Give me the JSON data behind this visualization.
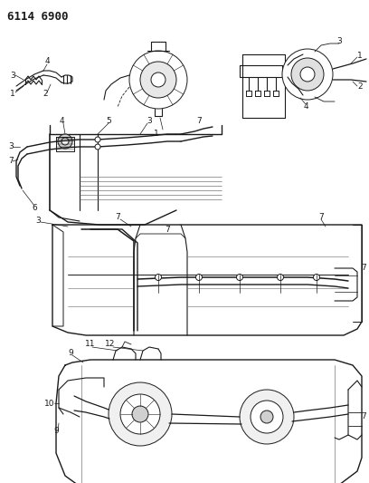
{
  "title": "6114 6900",
  "bg_color": "#ffffff",
  "line_color": "#1a1a1a",
  "line_width": 0.7,
  "label_fontsize": 6.5
}
